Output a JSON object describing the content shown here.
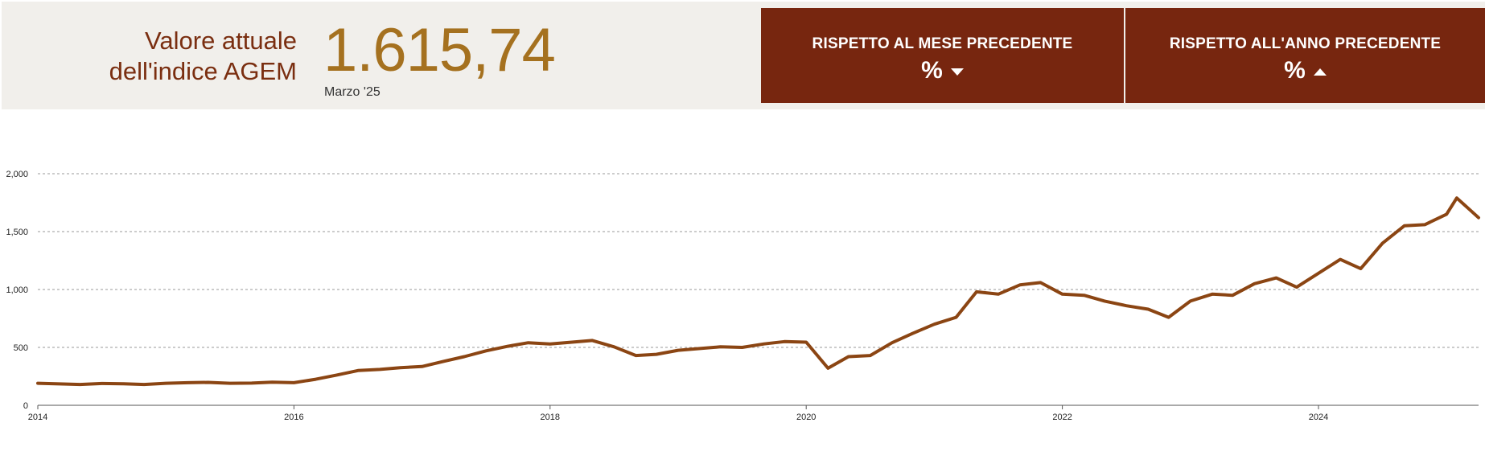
{
  "header": {
    "title_line1": "Valore attuale",
    "title_line2": "dell'indice AGEM",
    "value": "1.615,74",
    "period": "Marzo '25"
  },
  "cards": [
    {
      "label": "RISPETTO AL MESE PRECEDENTE",
      "pct": "%",
      "direction": "down"
    },
    {
      "label": "RISPETTO ALL'ANNO PRECEDENTE",
      "pct": "%",
      "direction": "up"
    }
  ],
  "colors": {
    "line": "#8b4513",
    "card_bg": "#77260f",
    "title": "#7a2e10",
    "value": "#a5711f",
    "header_bg": "#f1efeb"
  },
  "chart_data": {
    "type": "line",
    "title": "",
    "xlabel": "",
    "ylabel": "",
    "xlim": [
      2014.0,
      2025.25
    ],
    "ylim": [
      0,
      2000
    ],
    "y_ticks": [
      0,
      500,
      1000,
      1500,
      2000
    ],
    "y_tick_labels": [
      "0",
      "500",
      "1,000",
      "1,500",
      "2,000"
    ],
    "x_ticks": [
      2014,
      2016,
      2018,
      2020,
      2022,
      2024
    ],
    "x_tick_labels": [
      "2014",
      "2016",
      "2018",
      "2020",
      "2022",
      "2024"
    ],
    "grid": "horizontal dashed",
    "series": [
      {
        "x": [
          2014.0,
          2014.17,
          2014.33,
          2014.5,
          2014.67,
          2014.83,
          2015.0,
          2015.17,
          2015.33,
          2015.5,
          2015.67,
          2015.83,
          2016.0,
          2016.17,
          2016.33,
          2016.5,
          2016.67,
          2016.83,
          2017.0,
          2017.17,
          2017.33,
          2017.5,
          2017.67,
          2017.83,
          2018.0,
          2018.17,
          2018.33,
          2018.5,
          2018.67,
          2018.83,
          2019.0,
          2019.17,
          2019.33,
          2019.5,
          2019.67,
          2019.83,
          2020.0,
          2020.17,
          2020.33,
          2020.5,
          2020.67,
          2020.83,
          2021.0,
          2021.17,
          2021.33,
          2021.5,
          2021.67,
          2021.83,
          2022.0,
          2022.17,
          2022.33,
          2022.5,
          2022.67,
          2022.83,
          2023.0,
          2023.17,
          2023.33,
          2023.5,
          2023.67,
          2023.83,
          2024.0,
          2024.17,
          2024.33,
          2024.5,
          2024.67,
          2024.83,
          2025.0,
          2025.08,
          2025.17,
          2025.25
        ],
        "values": [
          190,
          185,
          180,
          188,
          186,
          180,
          190,
          195,
          198,
          190,
          192,
          200,
          195,
          225,
          260,
          300,
          310,
          325,
          335,
          380,
          420,
          470,
          510,
          540,
          530,
          545,
          560,
          505,
          430,
          440,
          475,
          490,
          505,
          500,
          530,
          550,
          545,
          320,
          420,
          430,
          540,
          620,
          700,
          760,
          980,
          960,
          1040,
          1060,
          960,
          950,
          900,
          860,
          830,
          760,
          900,
          960,
          950,
          1050,
          1100,
          1020,
          1140,
          1260,
          1180,
          1400,
          1550,
          1560,
          1650,
          1790,
          1700,
          1620
        ]
      }
    ]
  }
}
